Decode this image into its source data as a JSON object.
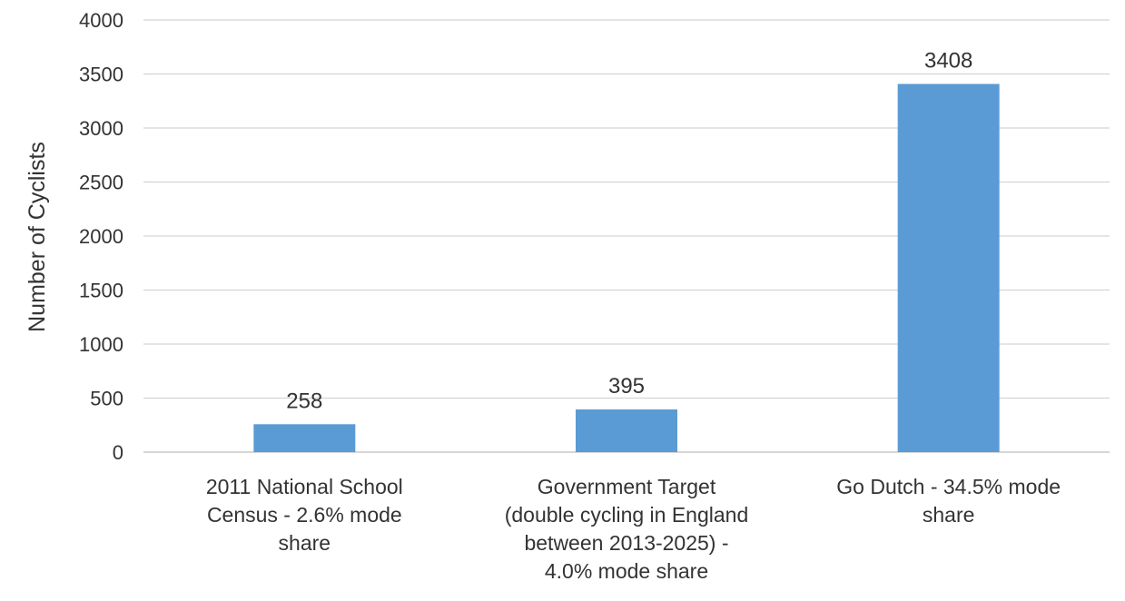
{
  "chart_data": {
    "type": "bar",
    "title": "",
    "xlabel": "",
    "ylabel": "Number of Cyclists",
    "ylim": [
      0,
      4000
    ],
    "yticks": [
      0,
      500,
      1000,
      1500,
      2000,
      2500,
      3000,
      3500,
      4000
    ],
    "grid": true,
    "legend": "none",
    "bar_color": "#5b9bd5",
    "categories": [
      [
        "2011 National School",
        "Census - 2.6% mode",
        "share"
      ],
      [
        "Government Target",
        "(double cycling in England",
        "between 2013-2025) -",
        "4.0% mode share"
      ],
      [
        "Go Dutch - 34.5% mode",
        "share"
      ]
    ],
    "values": [
      258,
      395,
      3408
    ],
    "data_labels": [
      "258",
      "395",
      "3408"
    ]
  }
}
